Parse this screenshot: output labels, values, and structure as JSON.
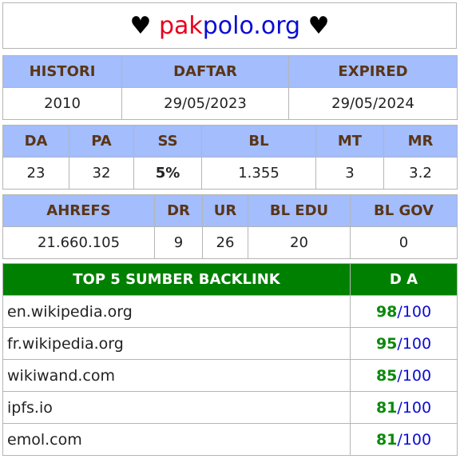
{
  "title": {
    "heart_left": "♥",
    "domain_part1": "pak",
    "domain_part2": "polo.org",
    "heart_right": "♥"
  },
  "dates": {
    "headers": [
      "HISTORI",
      "DAFTAR",
      "EXPIRED"
    ],
    "values": [
      "2010",
      "29/05/2023",
      "29/05/2024"
    ]
  },
  "metrics1": {
    "headers": [
      "DA",
      "PA",
      "SS",
      "BL",
      "MT",
      "MR"
    ],
    "values": [
      "23",
      "32",
      "5%",
      "1.355",
      "3",
      "3.2"
    ]
  },
  "metrics2": {
    "headers": [
      "AHREFS",
      "DR",
      "UR",
      "BL EDU",
      "BL GOV"
    ],
    "values": [
      "21.660.105",
      "9",
      "26",
      "20",
      "0"
    ]
  },
  "backlinks": {
    "header_source": "TOP 5 SUMBER BACKLINK",
    "header_da": "D A",
    "rows": [
      {
        "site": "en.wikipedia.org",
        "score": "98",
        "max": "/100"
      },
      {
        "site": "fr.wikipedia.org",
        "score": "95",
        "max": "/100"
      },
      {
        "site": "wikiwand.com",
        "score": "85",
        "max": "/100"
      },
      {
        "site": "ipfs.io",
        "score": "81",
        "max": "/100"
      },
      {
        "site": "emol.com",
        "score": "81",
        "max": "/100"
      }
    ]
  },
  "colors": {
    "header_bg": "#a3bdfd",
    "header_text": "#5a3517",
    "backlink_header_bg": "#008000",
    "score_green": "#0a8a0a",
    "max_blue": "#0b0bd4"
  }
}
